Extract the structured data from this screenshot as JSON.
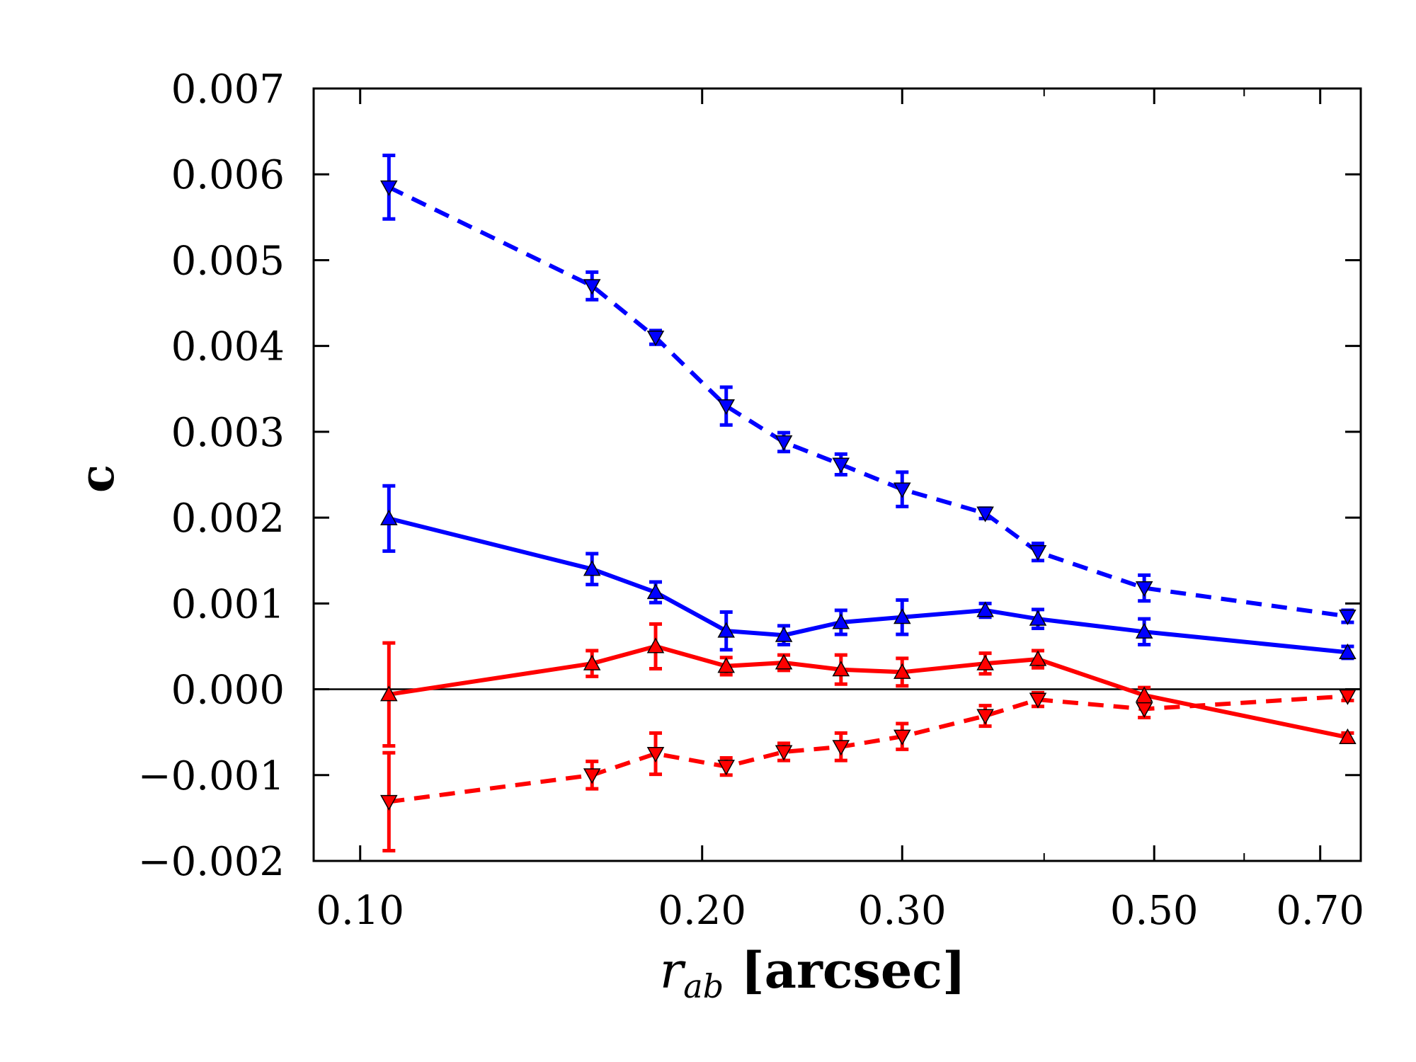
{
  "chart_data": {
    "type": "line",
    "xscale": "log",
    "xlim": [
      0.091,
      0.76
    ],
    "ylim": [
      -0.002,
      0.007
    ],
    "xticks": [
      {
        "value": 0.1,
        "label": "0.10"
      },
      {
        "value": 0.2,
        "label": "0.20"
      },
      {
        "value": 0.3,
        "label": "0.30"
      },
      {
        "value": 0.5,
        "label": "0.50"
      },
      {
        "value": 0.7,
        "label": "0.70"
      }
    ],
    "yticks": [
      {
        "value": -0.002,
        "label": "−0.002"
      },
      {
        "value": -0.001,
        "label": "−0.001"
      },
      {
        "value": 0.0,
        "label": "0.000"
      },
      {
        "value": 0.001,
        "label": "0.001"
      },
      {
        "value": 0.002,
        "label": "0.002"
      },
      {
        "value": 0.003,
        "label": "0.003"
      },
      {
        "value": 0.004,
        "label": "0.004"
      },
      {
        "value": 0.005,
        "label": "0.005"
      },
      {
        "value": 0.006,
        "label": "0.006"
      },
      {
        "value": 0.007,
        "label": "0.007"
      }
    ],
    "xlabel_main": "r",
    "xlabel_sub": "ab",
    "xlabel_rest": " [arcsec]",
    "ylabel": "c",
    "zero_line": true,
    "x": [
      0.106,
      0.16,
      0.182,
      0.21,
      0.236,
      0.265,
      0.3,
      0.355,
      0.395,
      0.49,
      0.74
    ],
    "series": [
      {
        "name": "blue-down-dashed",
        "color": "#0000ff",
        "dash": "dashed",
        "marker": "triangle-down",
        "values": [
          0.00585,
          0.0047,
          0.0041,
          0.0033,
          0.00288,
          0.00262,
          0.00233,
          0.00205,
          0.0016,
          0.00118,
          0.00085
        ],
        "errors": [
          0.00037,
          0.00016,
          8e-05,
          0.00022,
          0.00011,
          0.00012,
          0.0002,
          6e-05,
          0.0001,
          0.00015,
          7e-05
        ]
      },
      {
        "name": "blue-up-solid",
        "color": "#0000ff",
        "dash": "solid",
        "marker": "triangle-up",
        "values": [
          0.00199,
          0.0014,
          0.00113,
          0.00068,
          0.00063,
          0.00078,
          0.00084,
          0.00092,
          0.00082,
          0.00067,
          0.00043
        ],
        "errors": [
          0.00038,
          0.00018,
          0.00012,
          0.00022,
          0.00011,
          0.00014,
          0.0002,
          8e-05,
          0.00011,
          0.00015,
          7e-05
        ]
      },
      {
        "name": "red-up-solid",
        "color": "#ff0000",
        "dash": "solid",
        "marker": "triangle-up",
        "values": [
          -6e-05,
          0.0003,
          0.0005,
          0.00027,
          0.00031,
          0.00023,
          0.0002,
          0.0003,
          0.00035,
          -7e-05,
          -0.00056
        ],
        "errors": [
          0.0006,
          0.00015,
          0.00026,
          0.0001,
          9e-05,
          0.00017,
          0.00016,
          0.00012,
          0.0001,
          9e-05,
          5e-05
        ]
      },
      {
        "name": "red-down-dashed",
        "color": "#ff0000",
        "dash": "dashed",
        "marker": "triangle-down",
        "values": [
          -0.00131,
          -0.001,
          -0.00075,
          -0.0009,
          -0.00073,
          -0.00067,
          -0.00055,
          -0.00031,
          -0.00012,
          -0.00023,
          -8e-05
        ],
        "errors": [
          0.00057,
          0.00016,
          0.00024,
          0.0001,
          0.0001,
          0.00016,
          0.00015,
          0.00012,
          8e-05,
          0.0001,
          5e-05
        ]
      }
    ]
  }
}
